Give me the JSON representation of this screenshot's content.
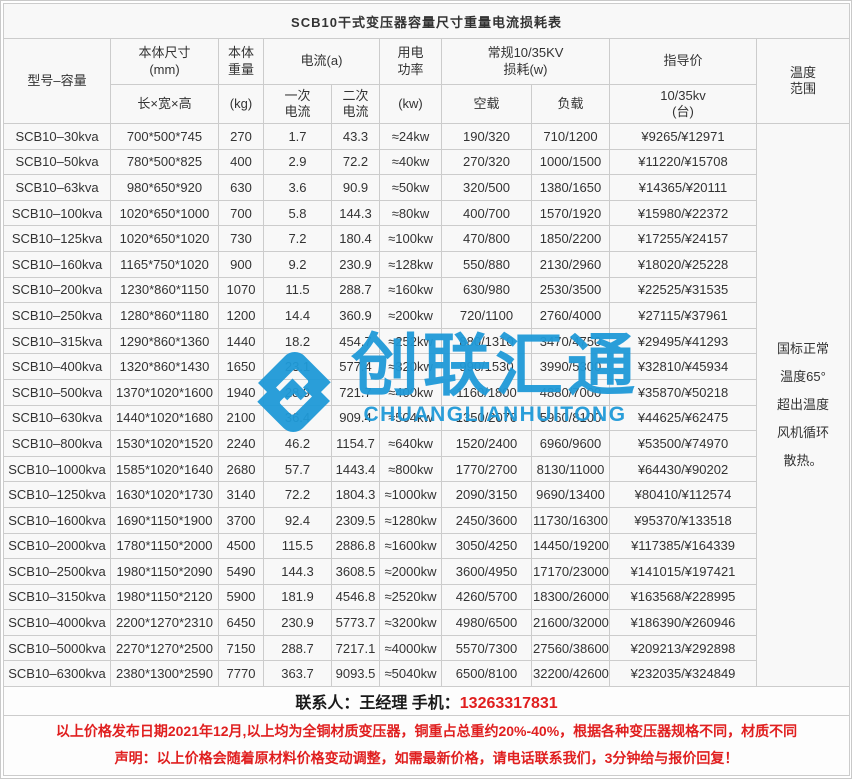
{
  "title": "SCB10干式变压器容量尺寸重量电流损耗表",
  "columns": {
    "model": "型号–容量",
    "dims": "本体尺寸\n(mm)",
    "dims_sub": "长×宽×高",
    "weight": "本体\n重量",
    "weight_sub": "(kg)",
    "current": "电流(a)",
    "current_primary": "一次\n电流",
    "current_secondary": "二次\n电流",
    "power": "用电\n功率",
    "power_sub": "(kw)",
    "loss": "常规10/35KV\n损耗(w)",
    "loss_noload": "空载",
    "loss_load": "负载",
    "price": "指导价",
    "price_sub": "10/35kv\n(台)",
    "temperature": "温度\n范围"
  },
  "rows": [
    {
      "model": "SCB10–30kva",
      "dims": "700*500*745",
      "weight": "270",
      "i1": "1.7",
      "i2": "43.3",
      "power": "≈24kw",
      "noload": "190/320",
      "load": "710/1200",
      "price": "¥9265/¥12971"
    },
    {
      "model": "SCB10–50kva",
      "dims": "780*500*825",
      "weight": "400",
      "i1": "2.9",
      "i2": "72.2",
      "power": "≈40kw",
      "noload": "270/320",
      "load": "1000/1500",
      "price": "¥11220/¥15708"
    },
    {
      "model": "SCB10–63kva",
      "dims": "980*650*920",
      "weight": "630",
      "i1": "3.6",
      "i2": "90.9",
      "power": "≈50kw",
      "noload": "320/500",
      "load": "1380/1650",
      "price": "¥14365/¥20111"
    },
    {
      "model": "SCB10–100kva",
      "dims": "1020*650*1000",
      "weight": "700",
      "i1": "5.8",
      "i2": "144.3",
      "power": "≈80kw",
      "noload": "400/700",
      "load": "1570/1920",
      "price": "¥15980/¥22372"
    },
    {
      "model": "SCB10–125kva",
      "dims": "1020*650*1020",
      "weight": "730",
      "i1": "7.2",
      "i2": "180.4",
      "power": "≈100kw",
      "noload": "470/800",
      "load": "1850/2200",
      "price": "¥17255/¥24157"
    },
    {
      "model": "SCB10–160kva",
      "dims": "1165*750*1020",
      "weight": "900",
      "i1": "9.2",
      "i2": "230.9",
      "power": "≈128kw",
      "noload": "550/880",
      "load": "2130/2960",
      "price": "¥18020/¥25228"
    },
    {
      "model": "SCB10–200kva",
      "dims": "1230*860*1150",
      "weight": "1070",
      "i1": "11.5",
      "i2": "288.7",
      "power": "≈160kw",
      "noload": "630/980",
      "load": "2530/3500",
      "price": "¥22525/¥31535"
    },
    {
      "model": "SCB10–250kva",
      "dims": "1280*860*1180",
      "weight": "1200",
      "i1": "14.4",
      "i2": "360.9",
      "power": "≈200kw",
      "noload": "720/1100",
      "load": "2760/4000",
      "price": "¥27115/¥37961"
    },
    {
      "model": "SCB10–315kva",
      "dims": "1290*860*1360",
      "weight": "1440",
      "i1": "18.2",
      "i2": "454.7",
      "power": "≈252kw",
      "noload": "880/1310",
      "load": "3470/4750",
      "price": "¥29495/¥41293"
    },
    {
      "model": "SCB10–400kva",
      "dims": "1320*860*1430",
      "weight": "1650",
      "i1": "23.1",
      "i2": "577.4",
      "power": "≈320kw",
      "noload": "990/1530",
      "load": "3990/5300",
      "price": "¥32810/¥45934"
    },
    {
      "model": "SCB10–500kva",
      "dims": "1370*1020*1600",
      "weight": "1940",
      "i1": "28.9",
      "i2": "721.7",
      "power": "≈400kw",
      "noload": "1160/1800",
      "load": "4880/7000",
      "price": "¥35870/¥50218"
    },
    {
      "model": "SCB10–630kva",
      "dims": "1440*1020*1680",
      "weight": "2100",
      "i1": "36.4",
      "i2": "909.4",
      "power": "≈504kw",
      "noload": "1350/2070",
      "load": "5960/8100",
      "price": "¥44625/¥62475"
    },
    {
      "model": "SCB10–800kva",
      "dims": "1530*1020*1520",
      "weight": "2240",
      "i1": "46.2",
      "i2": "1154.7",
      "power": "≈640kw",
      "noload": "1520/2400",
      "load": "6960/9600",
      "price": "¥53500/¥74970"
    },
    {
      "model": "SCB10–1000kva",
      "dims": "1585*1020*1640",
      "weight": "2680",
      "i1": "57.7",
      "i2": "1443.4",
      "power": "≈800kw",
      "noload": "1770/2700",
      "load": "8130/11000",
      "price": "¥64430/¥90202"
    },
    {
      "model": "SCB10–1250kva",
      "dims": "1630*1020*1730",
      "weight": "3140",
      "i1": "72.2",
      "i2": "1804.3",
      "power": "≈1000kw",
      "noload": "2090/3150",
      "load": "9690/13400",
      "price": "¥80410/¥112574"
    },
    {
      "model": "SCB10–1600kva",
      "dims": "1690*1150*1900",
      "weight": "3700",
      "i1": "92.4",
      "i2": "2309.5",
      "power": "≈1280kw",
      "noload": "2450/3600",
      "load": "11730/16300",
      "price": "¥95370/¥133518"
    },
    {
      "model": "SCB10–2000kva",
      "dims": "1780*1150*2000",
      "weight": "4500",
      "i1": "115.5",
      "i2": "2886.8",
      "power": "≈1600kw",
      "noload": "3050/4250",
      "load": "14450/19200",
      "price": "¥117385/¥164339"
    },
    {
      "model": "SCB10–2500kva",
      "dims": "1980*1150*2090",
      "weight": "5490",
      "i1": "144.3",
      "i2": "3608.5",
      "power": "≈2000kw",
      "noload": "3600/4950",
      "load": "17170/23000",
      "price": "¥141015/¥197421"
    },
    {
      "model": "SCB10–3150kva",
      "dims": "1980*1150*2120",
      "weight": "5900",
      "i1": "181.9",
      "i2": "4546.8",
      "power": "≈2520kw",
      "noload": "4260/5700",
      "load": "18300/26000",
      "price": "¥163568/¥228995"
    },
    {
      "model": "SCB10–4000kva",
      "dims": "2200*1270*2310",
      "weight": "6450",
      "i1": "230.9",
      "i2": "5773.7",
      "power": "≈3200kw",
      "noload": "4980/6500",
      "load": "21600/32000",
      "price": "¥186390/¥260946"
    },
    {
      "model": "SCB10–5000kva",
      "dims": "2270*1270*2500",
      "weight": "7150",
      "i1": "288.7",
      "i2": "7217.1",
      "power": "≈4000kw",
      "noload": "5570/7300",
      "load": "27560/38600",
      "price": "¥209213/¥292898"
    },
    {
      "model": "SCB10–6300kva",
      "dims": "2380*1300*2590",
      "weight": "7770",
      "i1": "363.7",
      "i2": "9093.5",
      "power": "≈5040kw",
      "noload": "6500/8100",
      "load": "32200/42600",
      "price": "¥232035/¥324849"
    }
  ],
  "temperature_note": "国标正常\n温度65°\n超出温度\n风机循环\n散热。",
  "contact": {
    "prefix": "联系人：王经理  手机：",
    "phone": "13263317831"
  },
  "notes": [
    "以上价格发布日期2021年12月,以上均为全铜材质变压器，铜重占总重约20%-40%，根据各种变压器规格不同，材质不同",
    "声明：以上价格会随着原材料价格变动调整，如需最新价格，请电话联系我们，3分钟给与报价回复！"
  ],
  "watermark": {
    "name": "创联汇通",
    "latin": "CHUANGLIANHUITONG",
    "color": "#1F9AD8"
  },
  "colors": {
    "model_red": "#D9372C",
    "note_red": "#E01F1F",
    "watermark_blue": "#1F9AD8",
    "header_bg": "#EDEDED",
    "row_bg": "#F8F8F8",
    "border": "#CCCCCC"
  }
}
